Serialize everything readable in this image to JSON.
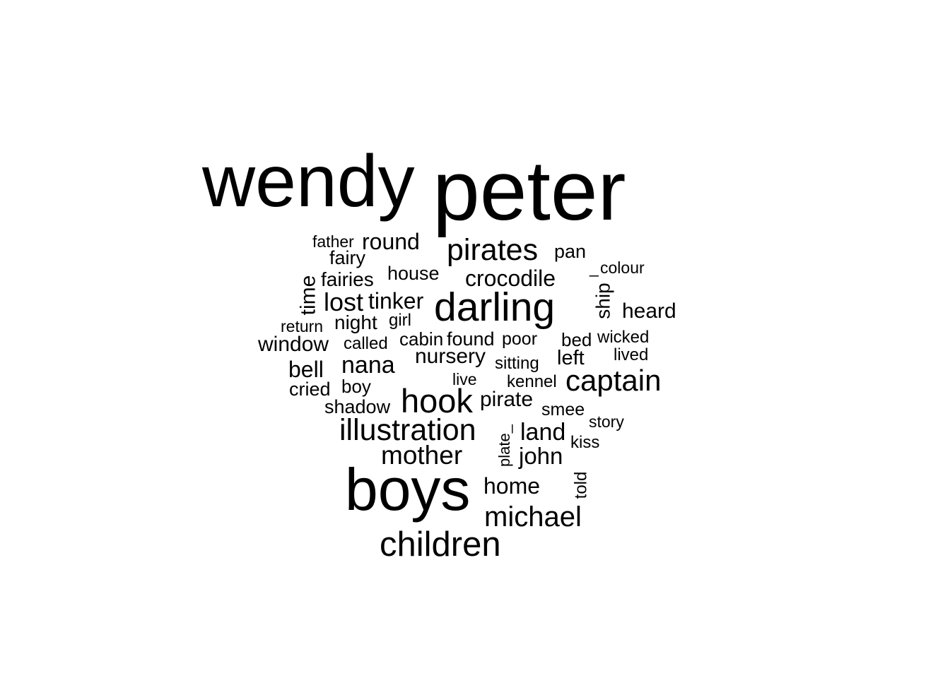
{
  "text_color": "#000000",
  "background_color": "#ffffff",
  "words": [
    {
      "text": "wendy"
    },
    {
      "text": "peter"
    },
    {
      "text": "father"
    },
    {
      "text": "round"
    },
    {
      "text": "fairy"
    },
    {
      "text": "pirates"
    },
    {
      "text": "pan"
    },
    {
      "text": "house"
    },
    {
      "text": "colour"
    },
    {
      "text": "_"
    },
    {
      "text": "fairies"
    },
    {
      "text": "crocodile"
    },
    {
      "text": "time"
    },
    {
      "text": "lost"
    },
    {
      "text": "tinker"
    },
    {
      "text": "darling"
    },
    {
      "text": "ship"
    },
    {
      "text": "heard"
    },
    {
      "text": "return"
    },
    {
      "text": "night"
    },
    {
      "text": "girl"
    },
    {
      "text": "window"
    },
    {
      "text": "called"
    },
    {
      "text": "cabin"
    },
    {
      "text": "found"
    },
    {
      "text": "poor"
    },
    {
      "text": "bed"
    },
    {
      "text": "wicked"
    },
    {
      "text": "lived"
    },
    {
      "text": "bell"
    },
    {
      "text": "nana"
    },
    {
      "text": "nursery"
    },
    {
      "text": "sitting"
    },
    {
      "text": "left"
    },
    {
      "text": "live"
    },
    {
      "text": "kennel"
    },
    {
      "text": "captain"
    },
    {
      "text": "cried"
    },
    {
      "text": "boy"
    },
    {
      "text": "shadow"
    },
    {
      "text": "hook"
    },
    {
      "text": "pirate"
    },
    {
      "text": "smee"
    },
    {
      "text": "illustration"
    },
    {
      "text": "plate_"
    },
    {
      "text": "land"
    },
    {
      "text": "story"
    },
    {
      "text": "kiss"
    },
    {
      "text": "mother"
    },
    {
      "text": "john"
    },
    {
      "text": "boys"
    },
    {
      "text": "home"
    },
    {
      "text": "told"
    },
    {
      "text": "michael"
    },
    {
      "text": "children"
    }
  ]
}
